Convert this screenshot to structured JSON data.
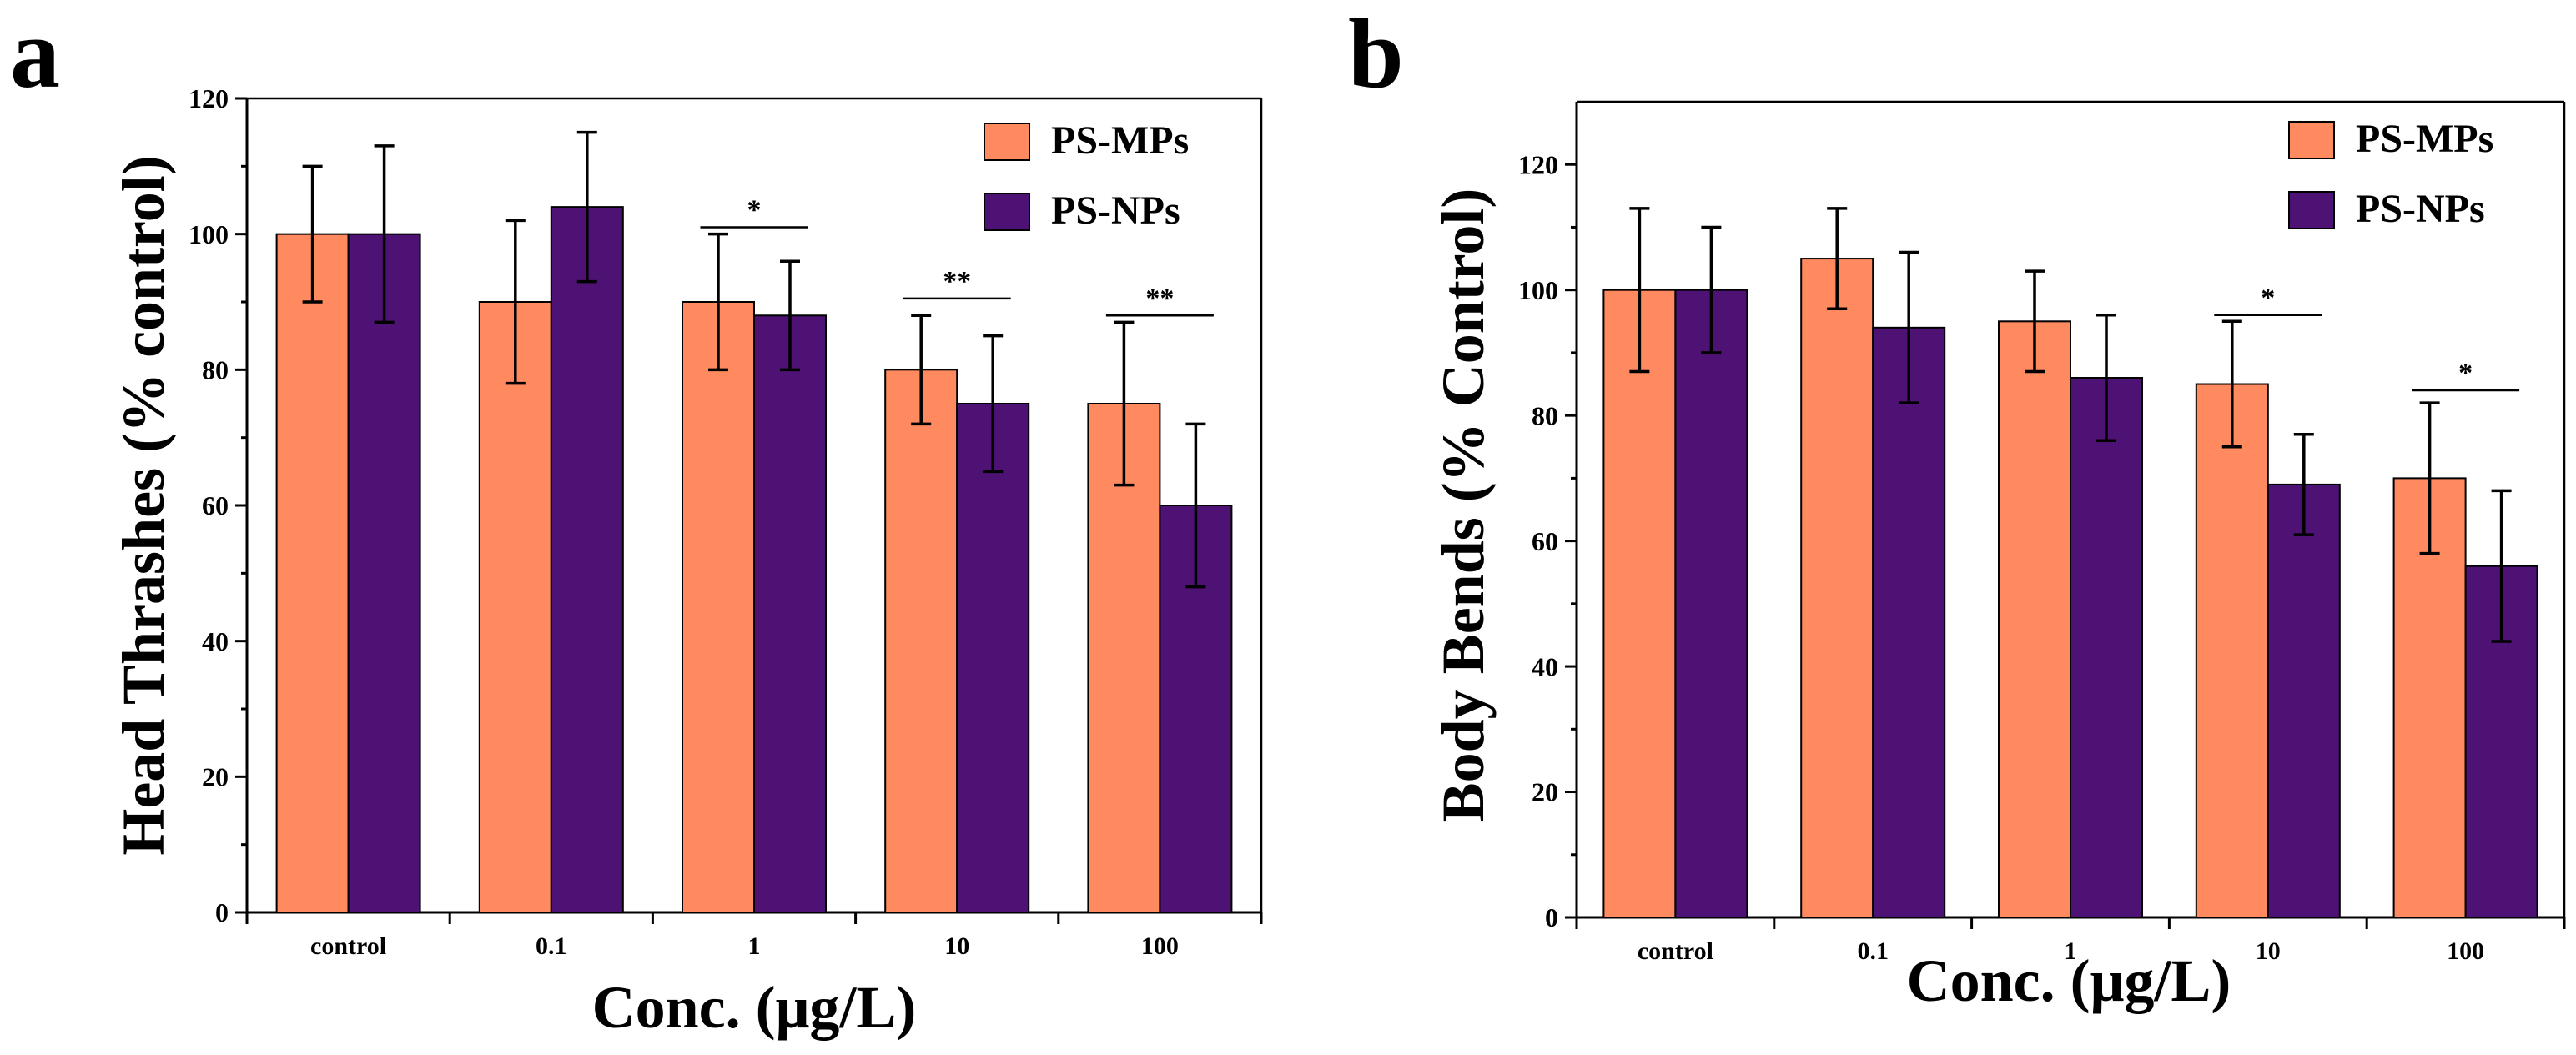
{
  "colors": {
    "ps_mps": "#FF8A5F",
    "ps_nps": "#4E1274"
  },
  "chart_data": [
    {
      "panel_label": "a",
      "type": "bar",
      "title": "",
      "xlabel": "Conc. (μg/L)",
      "ylabel": "Head Thrashes (% control)",
      "categories": [
        "control",
        "0.1",
        "1",
        "10",
        "100"
      ],
      "ylim": [
        0,
        120
      ],
      "yticks": [
        0,
        20,
        40,
        60,
        80,
        100,
        120
      ],
      "legend_position": "top-right",
      "series": [
        {
          "name": "PS-MPs",
          "color_key": "ps_mps",
          "values": [
            100,
            90,
            90,
            80,
            75
          ],
          "errors": [
            10,
            12,
            10,
            8,
            12
          ]
        },
        {
          "name": "PS-NPs",
          "color_key": "ps_nps",
          "values": [
            100,
            104,
            88,
            75,
            60
          ],
          "errors": [
            13,
            11,
            8,
            10,
            12
          ]
        }
      ],
      "significance": [
        {
          "category": "1",
          "label": "*",
          "level": 101
        },
        {
          "category": "10",
          "label": "**",
          "level": 90.5
        },
        {
          "category": "100",
          "label": "**",
          "level": 88
        }
      ]
    },
    {
      "panel_label": "b",
      "type": "bar",
      "title": "",
      "xlabel": "Conc. (μg/L)",
      "ylabel": "Body Bends (% Control)",
      "categories": [
        "control",
        "0.1",
        "1",
        "10",
        "100"
      ],
      "ylim": [
        0,
        130
      ],
      "yticks": [
        0,
        20,
        40,
        60,
        80,
        100,
        120
      ],
      "legend_position": "top-right",
      "series": [
        {
          "name": "PS-MPs",
          "color_key": "ps_mps",
          "values": [
            100,
            105,
            95,
            85,
            70
          ],
          "errors": [
            13,
            8,
            8,
            10,
            12
          ]
        },
        {
          "name": "PS-NPs",
          "color_key": "ps_nps",
          "values": [
            100,
            94,
            86,
            69,
            56
          ],
          "errors": [
            10,
            12,
            10,
            8,
            12
          ]
        }
      ],
      "significance": [
        {
          "category": "10",
          "label": "*",
          "level": 96
        },
        {
          "category": "100",
          "label": "*",
          "level": 84
        }
      ]
    }
  ]
}
